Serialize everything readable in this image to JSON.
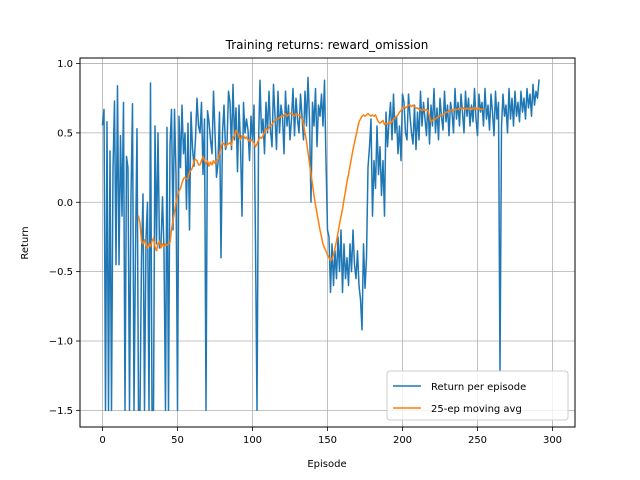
{
  "chart_data": {
    "type": "line",
    "title": "Training returns: reward_omission",
    "xlabel": "Episode",
    "ylabel": "Return",
    "xlim": [
      -15,
      315
    ],
    "ylim": [
      -1.62,
      1.04
    ],
    "x_ticks": [
      0,
      50,
      100,
      150,
      200,
      250,
      300
    ],
    "y_ticks": [
      -1.5,
      -1.0,
      -0.5,
      0.0,
      0.5,
      1.0
    ],
    "y_tick_labels": [
      "−1.5",
      "−1.0",
      "−0.5",
      "0.0",
      "0.5",
      "1.0"
    ],
    "grid": true,
    "legend_position": "lower-right",
    "series": [
      {
        "name": "Return per episode",
        "color": "#1f77b4",
        "x_start": 0,
        "values": [
          0.56,
          0.67,
          -1.5,
          0.58,
          -1.5,
          0.37,
          -1.5,
          0.24,
          0.73,
          -0.45,
          0.84,
          -0.45,
          0.48,
          -0.1,
          0.72,
          -1.5,
          0.33,
          0.25,
          -1.5,
          0.05,
          0.71,
          -1.5,
          -0.35,
          0.53,
          -1.5,
          -1.5,
          -0.4,
          0.06,
          -1.5,
          -0.26,
          0.0,
          -1.5,
          0.86,
          -1.5,
          -1.5,
          0.55,
          -0.3,
          0.5,
          -0.33,
          -0.3,
          0.04,
          -0.35,
          -1.5,
          0.54,
          -1.5,
          0.41,
          0.67,
          -0.2,
          0.67,
          0.2,
          -1.5,
          0.62,
          0.25,
          0.7,
          0.35,
          0.5,
          -0.05,
          0.57,
          -0.2,
          0.65,
          0.39,
          0.26,
          0.46,
          0.75,
          0.55,
          0.5,
          0.72,
          0.2,
          0.6,
          -1.5,
          0.66,
          0.58,
          0.45,
          0.35,
          0.8,
          0.5,
          0.18,
          0.28,
          0.65,
          -0.4,
          0.5,
          0.7,
          0.38,
          0.42,
          0.8,
          0.72,
          0.38,
          0.85,
          0.45,
          0.68,
          0.22,
          0.7,
          0.42,
          -0.1,
          0.72,
          0.5,
          0.6,
          0.52,
          0.3,
          0.62,
          0.45,
          0.7,
          -0.3,
          -1.5,
          0.42,
          0.88,
          0.5,
          0.6,
          0.35,
          0.72,
          0.5,
          0.8,
          0.52,
          0.4,
          0.85,
          0.62,
          0.38,
          0.8,
          0.5,
          0.7,
          0.62,
          0.35,
          0.8,
          0.55,
          0.7,
          0.45,
          0.6,
          0.82,
          0.48,
          0.75,
          0.6,
          0.5,
          0.78,
          0.62,
          0.45,
          0.8,
          0.55,
          0.9,
          0.6,
          0.0,
          0.72,
          0.55,
          0.82,
          0.4,
          0.7,
          0.62,
          0.78,
          0.55,
          0.88,
          0.3,
          -0.2,
          -0.25,
          -0.65,
          -0.3,
          -0.6,
          -0.35,
          -0.55,
          -0.25,
          -0.5,
          -0.2,
          -0.65,
          -0.3,
          -0.55,
          -0.4,
          -0.6,
          -0.3,
          -0.5,
          -0.2,
          -0.45,
          -0.55,
          -0.35,
          -0.6,
          -0.7,
          -0.92,
          -0.3,
          -0.62,
          -0.4,
          0.25,
          0.4,
          0.6,
          -0.1,
          0.3,
          0.1,
          0.55,
          0.2,
          0.4,
          0.05,
          0.3,
          -0.1,
          0.65,
          0.4,
          0.58,
          0.72,
          0.45,
          0.78,
          0.5,
          0.62,
          0.35,
          0.55,
          0.3,
          0.78,
          0.72,
          0.5,
          0.45,
          0.78,
          0.62,
          0.5,
          0.42,
          0.7,
          0.38,
          0.65,
          0.45,
          0.8,
          0.55,
          0.72,
          0.6,
          0.48,
          0.75,
          0.42,
          0.7,
          0.55,
          0.82,
          0.5,
          0.68,
          0.45,
          0.75,
          0.62,
          0.52,
          0.8,
          0.58,
          0.7,
          0.48,
          0.72,
          0.65,
          0.5,
          0.82,
          0.6,
          0.72,
          0.55,
          0.78,
          0.65,
          0.5,
          0.8,
          0.62,
          0.75,
          0.55,
          0.7,
          0.58,
          0.82,
          0.6,
          0.48,
          0.78,
          0.65,
          0.72,
          0.55,
          0.82,
          0.6,
          0.7,
          0.52,
          0.78,
          0.65,
          0.48,
          0.8,
          0.6,
          0.72,
          -1.22,
          0.55,
          0.78,
          0.62,
          0.7,
          0.5,
          0.82,
          0.6,
          0.75,
          0.55,
          0.8,
          0.62,
          0.72,
          0.58,
          0.8,
          0.65,
          0.75,
          0.6,
          0.82,
          0.68,
          0.78,
          0.62,
          0.85,
          0.7,
          0.8,
          0.75,
          0.88
        ]
      },
      {
        "name": "25-ep moving avg",
        "color": "#ff7f0e",
        "x_start": 24,
        "values": [
          -0.1,
          -0.15,
          -0.28,
          -0.3,
          -0.27,
          -0.31,
          -0.33,
          -0.3,
          -0.32,
          -0.28,
          -0.26,
          -0.32,
          -0.35,
          -0.3,
          -0.28,
          -0.33,
          -0.3,
          -0.32,
          -0.3,
          -0.31,
          -0.3,
          -0.29,
          -0.2,
          -0.13,
          -0.07,
          0.0,
          0.05,
          0.08,
          0.1,
          0.14,
          0.17,
          0.18,
          0.17,
          0.17,
          0.22,
          0.23,
          0.25,
          0.3,
          0.31,
          0.3,
          0.27,
          0.27,
          0.3,
          0.33,
          0.3,
          0.28,
          0.3,
          0.26,
          0.29,
          0.27,
          0.3,
          0.28,
          0.3,
          0.31,
          0.35,
          0.4,
          0.43,
          0.42,
          0.4,
          0.42,
          0.42,
          0.43,
          0.41,
          0.47,
          0.48,
          0.52,
          0.5,
          0.47,
          0.45,
          0.48,
          0.48,
          0.46,
          0.47,
          0.45,
          0.44,
          0.45,
          0.44,
          0.43,
          0.4,
          0.42,
          0.45,
          0.47,
          0.46,
          0.48,
          0.5,
          0.53,
          0.52,
          0.54,
          0.55,
          0.56,
          0.58,
          0.59,
          0.6,
          0.6,
          0.61,
          0.62,
          0.62,
          0.63,
          0.64,
          0.62,
          0.63,
          0.64,
          0.64,
          0.63,
          0.62,
          0.64,
          0.63,
          0.63,
          0.62,
          0.6,
          0.56,
          0.5,
          0.44,
          0.36,
          0.28,
          0.2,
          0.13,
          0.05,
          -0.02,
          -0.08,
          -0.14,
          -0.2,
          -0.25,
          -0.3,
          -0.33,
          -0.35,
          -0.38,
          -0.4,
          -0.42,
          -0.41,
          -0.38,
          -0.33,
          -0.28,
          -0.22,
          -0.16,
          -0.1,
          -0.05,
          0.02,
          0.08,
          0.15,
          0.2,
          0.26,
          0.32,
          0.38,
          0.43,
          0.48,
          0.53,
          0.58,
          0.6,
          0.62,
          0.63,
          0.62,
          0.63,
          0.64,
          0.63,
          0.62,
          0.63,
          0.62,
          0.63,
          0.6,
          0.58,
          0.57,
          0.58,
          0.59,
          0.56,
          0.57,
          0.56,
          0.58,
          0.57,
          0.58,
          0.6,
          0.61,
          0.62,
          0.63,
          0.65,
          0.66,
          0.68,
          0.69,
          0.68,
          0.69,
          0.7,
          0.7,
          0.69,
          0.7,
          0.69,
          0.68,
          0.68,
          0.67,
          0.67,
          0.66,
          0.67,
          0.66,
          0.67,
          0.66,
          0.62,
          0.58,
          0.59,
          0.6,
          0.6,
          0.61,
          0.62,
          0.62,
          0.63,
          0.63,
          0.64,
          0.65,
          0.65,
          0.66,
          0.66,
          0.67,
          0.66,
          0.67,
          0.67,
          0.67,
          0.68,
          0.68,
          0.67,
          0.68,
          0.67,
          0.68,
          0.67,
          0.68,
          0.67,
          0.68,
          0.67,
          0.68,
          0.67,
          0.68,
          0.67,
          0.67,
          0.67
        ]
      }
    ]
  }
}
